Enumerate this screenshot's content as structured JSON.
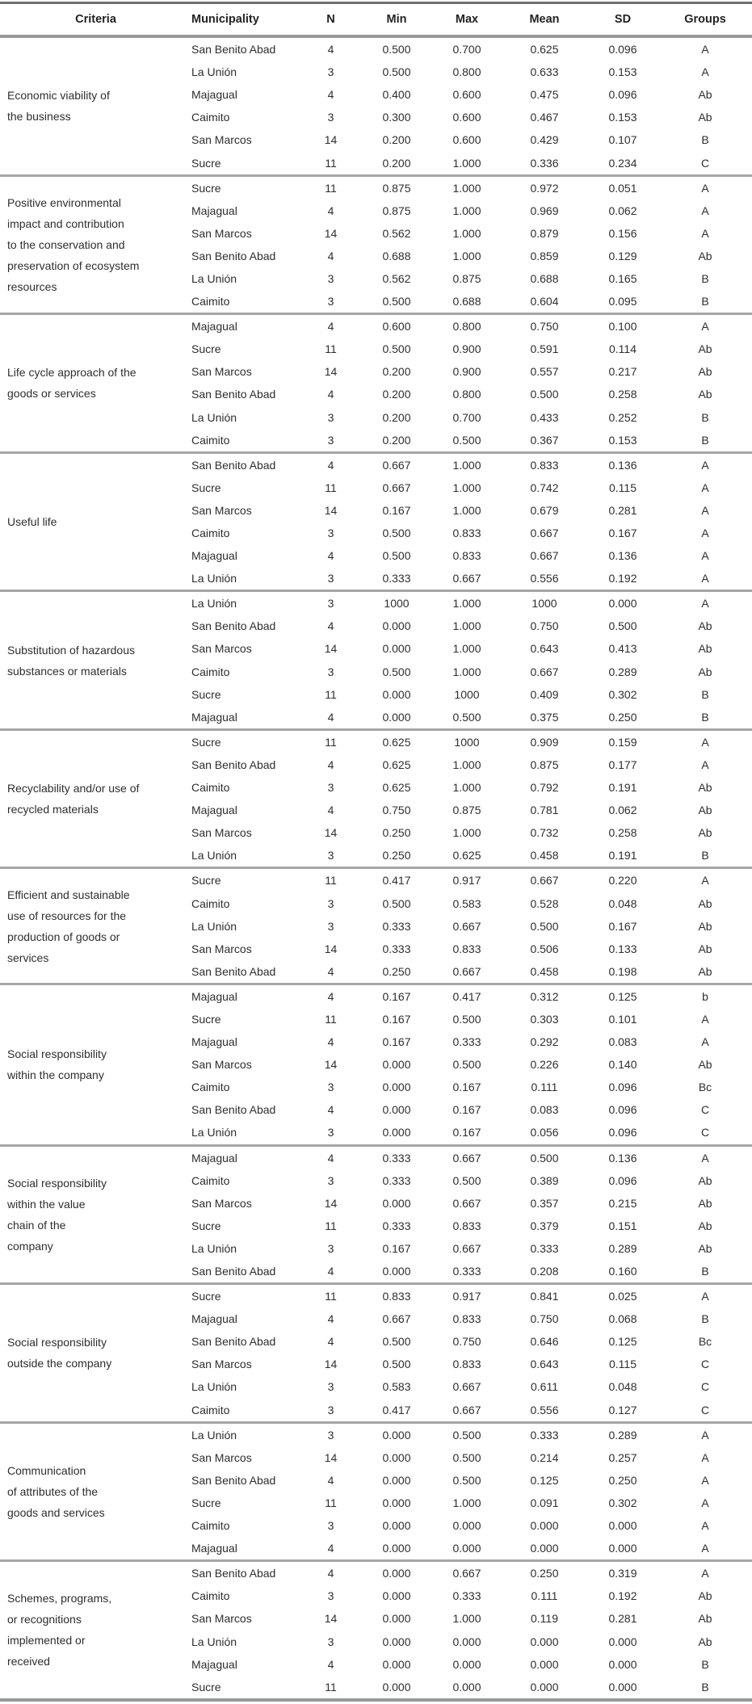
{
  "table": {
    "columns": [
      "Criteria",
      "Municipality",
      "N",
      "Min",
      "Max",
      "Mean",
      "SD",
      "Groups"
    ],
    "groups": [
      {
        "criteria": "Economic viability of\nthe business",
        "rows": [
          [
            "San Benito Abad",
            "4",
            "0.500",
            "0.700",
            "0.625",
            "0.096",
            "A"
          ],
          [
            "La Unión",
            "3",
            "0.500",
            "0.800",
            "0.633",
            "0.153",
            "A"
          ],
          [
            "Majagual",
            "4",
            "0.400",
            "0.600",
            "0.475",
            "0.096",
            "Ab"
          ],
          [
            "Caimito",
            "3",
            "0.300",
            "0.600",
            "0.467",
            "0.153",
            "Ab"
          ],
          [
            "San Marcos",
            "14",
            "0.200",
            "0.600",
            "0.429",
            "0.107",
            "B"
          ],
          [
            "Sucre",
            "11",
            "0.200",
            "1.000",
            "0.336",
            "0.234",
            "C"
          ]
        ]
      },
      {
        "criteria": "Positive environmental\nimpact and contribution\nto the conservation and\npreservation of ecosystem\nresources",
        "rows": [
          [
            "Sucre",
            "11",
            "0.875",
            "1.000",
            "0.972",
            "0.051",
            "A"
          ],
          [
            "Majagual",
            "4",
            "0.875",
            "1.000",
            "0.969",
            "0.062",
            "A"
          ],
          [
            "San Marcos",
            "14",
            "0.562",
            "1.000",
            "0.879",
            "0.156",
            "A"
          ],
          [
            "San Benito Abad",
            "4",
            "0.688",
            "1.000",
            "0.859",
            "0.129",
            "Ab"
          ],
          [
            "La Unión",
            "3",
            "0.562",
            "0.875",
            "0.688",
            "0.165",
            "B"
          ],
          [
            "Caimito",
            "3",
            "0.500",
            "0.688",
            "0.604",
            "0.095",
            "B"
          ]
        ]
      },
      {
        "criteria": "Life cycle approach of the\ngoods or services",
        "rows": [
          [
            "Majagual",
            "4",
            "0.600",
            "0.800",
            "0.750",
            "0.100",
            "A"
          ],
          [
            "Sucre",
            "11",
            "0.500",
            "0.900",
            "0.591",
            "0.114",
            "Ab"
          ],
          [
            "San Marcos",
            "14",
            "0.200",
            "0.900",
            "0.557",
            "0.217",
            "Ab"
          ],
          [
            "San Benito Abad",
            "4",
            "0.200",
            "0.800",
            "0.500",
            "0.258",
            "Ab"
          ],
          [
            "La Unión",
            "3",
            "0.200",
            "0.700",
            "0.433",
            "0.252",
            "B"
          ],
          [
            "Caimito",
            "3",
            "0.200",
            "0.500",
            "0.367",
            "0.153",
            "B"
          ]
        ]
      },
      {
        "criteria": "Useful life",
        "rows": [
          [
            "San Benito Abad",
            "4",
            "0.667",
            "1.000",
            "0.833",
            "0.136",
            "A"
          ],
          [
            "Sucre",
            "11",
            "0.667",
            "1.000",
            "0.742",
            "0.115",
            "A"
          ],
          [
            "San Marcos",
            "14",
            "0.167",
            "1.000",
            "0.679",
            "0.281",
            "A"
          ],
          [
            "Caimito",
            "3",
            "0.500",
            "0.833",
            "0.667",
            "0.167",
            "A"
          ],
          [
            "Majagual",
            "4",
            "0.500",
            "0.833",
            "0.667",
            "0.136",
            "A"
          ],
          [
            "La Unión",
            "3",
            "0.333",
            "0.667",
            "0.556",
            "0.192",
            "A"
          ]
        ]
      },
      {
        "criteria": "Substitution of hazardous\nsubstances or materials",
        "rows": [
          [
            "La Unión",
            "3",
            "1000",
            "1.000",
            "1000",
            "0.000",
            "A"
          ],
          [
            "San Benito Abad",
            "4",
            "0.000",
            "1.000",
            "0.750",
            "0.500",
            "Ab"
          ],
          [
            "San Marcos",
            "14",
            "0.000",
            "1.000",
            "0.643",
            "0.413",
            "Ab"
          ],
          [
            "Caimito",
            "3",
            "0.500",
            "1.000",
            "0.667",
            "0.289",
            "Ab"
          ],
          [
            "Sucre",
            "11",
            "0.000",
            "1000",
            "0.409",
            "0.302",
            "B"
          ],
          [
            "Majagual",
            "4",
            "0.000",
            "0.500",
            "0.375",
            "0.250",
            "B"
          ]
        ]
      },
      {
        "criteria": "Recyclability and/or use of\nrecycled materials",
        "rows": [
          [
            "Sucre",
            "11",
            "0.625",
            "1000",
            "0.909",
            "0.159",
            "A"
          ],
          [
            "San Benito Abad",
            "4",
            "0.625",
            "1.000",
            "0.875",
            "0.177",
            "A"
          ],
          [
            "Caimito",
            "3",
            "0.625",
            "1.000",
            "0.792",
            "0.191",
            "Ab"
          ],
          [
            "Majagual",
            "4",
            "0.750",
            "0.875",
            "0.781",
            "0.062",
            "Ab"
          ],
          [
            "San Marcos",
            "14",
            "0.250",
            "1.000",
            "0.732",
            "0.258",
            "Ab"
          ],
          [
            "La Unión",
            "3",
            "0.250",
            "0.625",
            "0.458",
            "0.191",
            "B"
          ]
        ]
      },
      {
        "criteria": "Efficient and sustainable\nuse of resources for the\nproduction of goods or\nservices",
        "rows": [
          [
            "Sucre",
            "11",
            "0.417",
            "0.917",
            "0.667",
            "0.220",
            "A"
          ],
          [
            "Caimito",
            "3",
            "0.500",
            "0.583",
            "0.528",
            "0.048",
            "Ab"
          ],
          [
            "La Unión",
            "3",
            "0.333",
            "0.667",
            "0.500",
            "0.167",
            "Ab"
          ],
          [
            "San Marcos",
            "14",
            "0.333",
            "0.833",
            "0.506",
            "0.133",
            "Ab"
          ],
          [
            "San Benito Abad",
            "4",
            "0.250",
            "0.667",
            "0.458",
            "0.198",
            "Ab"
          ]
        ]
      },
      {
        "criteria": "Social responsibility\nwithin the company",
        "rows": [
          [
            "Majagual",
            "4",
            "0.167",
            "0.417",
            "0.312",
            "0.125",
            "b"
          ],
          [
            "Sucre",
            "11",
            "0.167",
            "0.500",
            "0.303",
            "0.101",
            "A"
          ],
          [
            "Majagual",
            "4",
            "0.167",
            "0.333",
            "0.292",
            "0.083",
            "A"
          ],
          [
            "San Marcos",
            "14",
            "0.000",
            "0.500",
            "0.226",
            "0.140",
            "Ab"
          ],
          [
            "Caimito",
            "3",
            "0.000",
            "0.167",
            "0.111",
            "0.096",
            "Bc"
          ],
          [
            "San Benito Abad",
            "4",
            "0.000",
            "0.167",
            "0.083",
            "0.096",
            "C"
          ],
          [
            "La Unión",
            "3",
            "0.000",
            "0.167",
            "0.056",
            "0.096",
            "C"
          ]
        ]
      },
      {
        "criteria": "Social responsibility\nwithin the value\nchain of the\ncompany",
        "rows": [
          [
            "Majagual",
            "4",
            "0.333",
            "0.667",
            "0.500",
            "0.136",
            "A"
          ],
          [
            "Caimito",
            "3",
            "0.333",
            "0.500",
            "0.389",
            "0.096",
            "Ab"
          ],
          [
            "San Marcos",
            "14",
            "0.000",
            "0.667",
            "0.357",
            "0.215",
            "Ab"
          ],
          [
            "Sucre",
            "11",
            "0.333",
            "0.833",
            "0.379",
            "0.151",
            "Ab"
          ],
          [
            "La Unión",
            "3",
            "0.167",
            "0.667",
            "0.333",
            "0.289",
            "Ab"
          ],
          [
            "San Benito Abad",
            "4",
            "0.000",
            "0.333",
            "0.208",
            "0.160",
            "B"
          ]
        ]
      },
      {
        "criteria": "Social responsibility\noutside the company",
        "rows": [
          [
            "Sucre",
            "11",
            "0.833",
            "0.917",
            "0.841",
            "0.025",
            "A"
          ],
          [
            "Majagual",
            "4",
            "0.667",
            "0.833",
            "0.750",
            "0.068",
            "B"
          ],
          [
            "San Benito Abad",
            "4",
            "0.500",
            "0.750",
            "0.646",
            "0.125",
            "Bc"
          ],
          [
            "San Marcos",
            "14",
            "0.500",
            "0.833",
            "0.643",
            "0.115",
            "C"
          ],
          [
            "La Unión",
            "3",
            "0.583",
            "0.667",
            "0.611",
            "0.048",
            "C"
          ],
          [
            "Caimito",
            "3",
            "0.417",
            "0.667",
            "0.556",
            "0.127",
            "C"
          ]
        ]
      },
      {
        "criteria": "Communication\nof attributes of the\ngoods and services",
        "rows": [
          [
            "La Unión",
            "3",
            "0.000",
            "0.500",
            "0.333",
            "0.289",
            "A"
          ],
          [
            "San Marcos",
            "14",
            "0.000",
            "0.500",
            "0.214",
            "0.257",
            "A"
          ],
          [
            "San Benito Abad",
            "4",
            "0.000",
            "0.500",
            "0.125",
            "0.250",
            "A"
          ],
          [
            "Sucre",
            "11",
            "0.000",
            "1.000",
            "0.091",
            "0.302",
            "A"
          ],
          [
            "Caimito",
            "3",
            "0.000",
            "0.000",
            "0.000",
            "0.000",
            "A"
          ],
          [
            "Majagual",
            "4",
            "0.000",
            "0.000",
            "0.000",
            "0.000",
            "A"
          ]
        ]
      },
      {
        "criteria": "Schemes, programs,\nor recognitions\nimplemented or\nreceived",
        "rows": [
          [
            "San Benito Abad",
            "4",
            "0.000",
            "0.667",
            "0.250",
            "0.319",
            "A"
          ],
          [
            "Caimito",
            "3",
            "0.000",
            "0.333",
            "0.111",
            "0.192",
            "Ab"
          ],
          [
            "San Marcos",
            "14",
            "0.000",
            "1.000",
            "0.119",
            "0.281",
            "Ab"
          ],
          [
            "La Unión",
            "3",
            "0.000",
            "0.000",
            "0.000",
            "0.000",
            "Ab"
          ],
          [
            "Majagual",
            "4",
            "0.000",
            "0.000",
            "0.000",
            "0.000",
            "B"
          ],
          [
            "Sucre",
            "11",
            "0.000",
            "0.000",
            "0.000",
            "0.000",
            "B"
          ]
        ]
      }
    ]
  }
}
